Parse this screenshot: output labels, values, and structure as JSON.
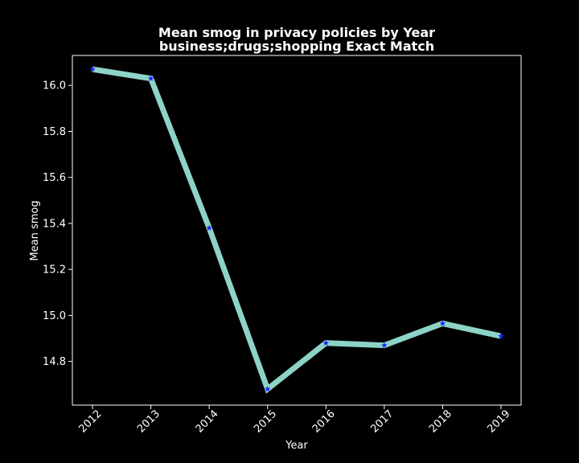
{
  "chart_data": {
    "type": "line",
    "title": "Mean smog in privacy policies by Year",
    "subtitle": "business;drugs;shopping Exact Match",
    "xlabel": "Year",
    "ylabel": "Mean smog",
    "categories": [
      "2012",
      "2013",
      "2014",
      "2015",
      "2016",
      "2017",
      "2018",
      "2019"
    ],
    "series": [
      {
        "values": [
          16.07,
          16.03,
          15.38,
          14.68,
          14.88,
          14.87,
          14.965,
          14.91
        ],
        "line_color": "#8dd3c7",
        "marker_color": "#1f1fff",
        "marker": "star"
      }
    ],
    "yticks": [
      "14.8",
      "15.0",
      "15.2",
      "15.4",
      "15.6",
      "15.8",
      "16.0"
    ],
    "ylim": [
      14.61,
      16.13
    ],
    "grid": false,
    "background": "#000000",
    "foreground": "#ffffff"
  }
}
